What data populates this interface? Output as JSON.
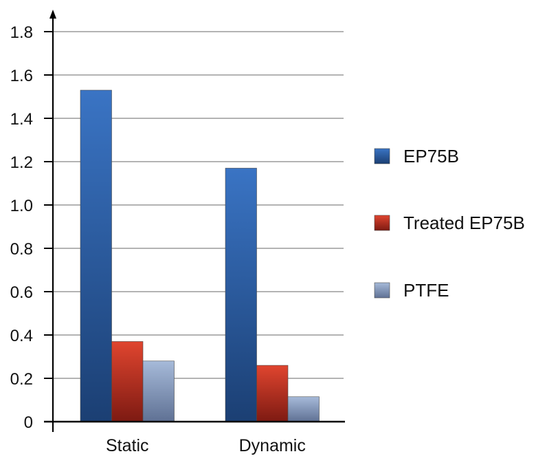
{
  "chart_data": {
    "type": "bar",
    "categories": [
      "Static",
      "Dynamic"
    ],
    "series": [
      {
        "name": "EP75B",
        "values": [
          1.53,
          1.17
        ],
        "color": "#2b5fa6"
      },
      {
        "name": "Treated EP75B",
        "values": [
          0.37,
          0.26
        ],
        "color": "#c9352a"
      },
      {
        "name": "PTFE",
        "values": [
          0.28,
          0.115
        ],
        "color": "#8fa6c8"
      }
    ],
    "yticks": [
      "0",
      "0.2",
      "0.4",
      "0.6",
      "0.8",
      "1.0",
      "1.2",
      "1.4",
      "1.6",
      "1.8"
    ],
    "ylim": [
      0,
      1.8
    ],
    "grid": true,
    "legend": "right"
  }
}
